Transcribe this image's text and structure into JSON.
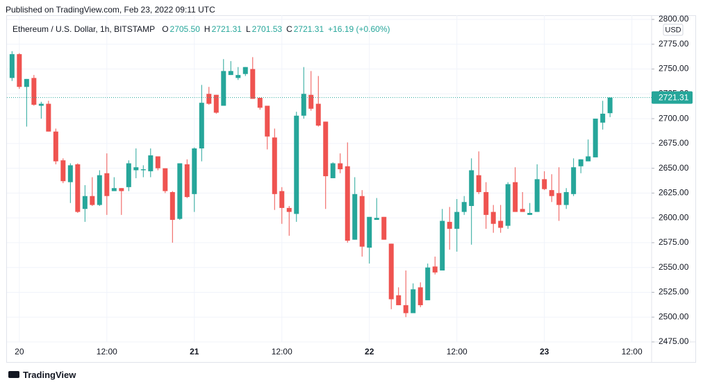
{
  "published": "Published on TradingView.com, Feb 23, 2022 09:11 UTC",
  "footer": "TradingView",
  "chart_data": {
    "type": "candlestick",
    "title": "Ethereum / U.S. Dollar, 1h, BITSTAMP",
    "ohlc_header": [
      [
        "O",
        "2705.50"
      ],
      [
        "H",
        "2721.31"
      ],
      [
        "L",
        "2701.53"
      ],
      [
        "C",
        "2721.31"
      ]
    ],
    "change": "+16.19 (+0.60%)",
    "currency": "USD",
    "up_color": "#26a69a",
    "down_color": "#ef5350",
    "grid": true,
    "last_price": {
      "value": 2721.31,
      "label": "2721.31"
    },
    "x": [
      -1,
      0,
      1,
      2,
      3,
      4,
      5,
      6,
      7,
      8,
      9,
      10,
      11,
      12,
      13,
      14,
      15,
      16,
      17,
      18,
      19,
      20,
      21,
      22,
      23,
      24,
      25,
      26,
      27,
      28,
      29,
      30,
      31,
      32,
      33,
      34,
      35,
      36,
      37,
      38,
      39,
      40,
      41,
      42,
      43,
      44,
      45,
      46,
      47,
      48,
      49,
      50,
      51,
      52,
      53,
      54,
      55,
      56,
      57,
      58,
      59,
      60,
      61,
      62,
      63,
      64,
      65,
      66,
      67,
      68,
      69,
      70,
      71,
      72,
      73,
      74,
      75,
      76,
      77,
      78,
      79,
      80,
      81
    ],
    "open": [
      2741,
      2765,
      2732,
      2741,
      2713,
      2715,
      2687,
      2658,
      2636,
      2654,
      2609,
      2622,
      2613,
      2645,
      2627,
      2630,
      2631,
      2648,
      2648,
      2647,
      2662,
      2650,
      2626,
      2599,
      2654,
      2624,
      2670,
      2725,
      2724,
      2713,
      2744,
      2741,
      2745,
      2750,
      2721,
      2713,
      2681,
      2627,
      2610,
      2604,
      2703,
      2724,
      2715,
      2697,
      2640,
      2655,
      2652,
      2578,
      2622,
      2570,
      2598,
      2601,
      2574,
      2522,
      2512,
      2504,
      2530,
      2517,
      2551,
      2547,
      2596,
      2589,
      2606,
      2612,
      2643,
      2626,
      2606,
      2597,
      2592,
      2636,
      2609,
      2603,
      2606,
      2639,
      2628,
      2625,
      2613,
      2624,
      2652,
      2657,
      2661,
      2696,
      2705.5
    ],
    "high": [
      2768,
      2766,
      2740,
      2744,
      2717,
      2718,
      2690,
      2660,
      2655,
      2655,
      2633,
      2641,
      2648,
      2665,
      2641,
      2630,
      2658,
      2670,
      2653,
      2670,
      2662,
      2650,
      2627,
      2655,
      2659,
      2671,
      2734,
      2732,
      2724,
      2760,
      2758,
      2752,
      2752,
      2762,
      2721,
      2713,
      2690,
      2631,
      2612,
      2707,
      2752,
      2748,
      2743,
      2697,
      2656,
      2665,
      2676,
      2641,
      2628,
      2600,
      2620,
      2601,
      2574,
      2530,
      2547,
      2534,
      2535,
      2554,
      2561,
      2609,
      2611,
      2619,
      2622,
      2660,
      2667,
      2636,
      2613,
      2613,
      2636,
      2651,
      2626,
      2615,
      2654,
      2647,
      2644,
      2651,
      2630,
      2660,
      2659,
      2679,
      2700,
      2718,
      2721.31
    ],
    "low": [
      2738,
      2730,
      2692,
      2713,
      2700,
      2687,
      2654,
      2635,
      2615,
      2605,
      2596,
      2612,
      2612,
      2603,
      2627,
      2603,
      2627,
      2640,
      2641,
      2641,
      2648,
      2625,
      2575,
      2598,
      2620,
      2606,
      2657,
      2714,
      2705,
      2713,
      2744,
      2739,
      2743,
      2720,
      2709,
      2669,
      2608,
      2594,
      2582,
      2596,
      2700,
      2708,
      2692,
      2609,
      2640,
      2645,
      2575,
      2578,
      2561,
      2554,
      2598,
      2578,
      2508,
      2512,
      2500,
      2504,
      2510,
      2517,
      2543,
      2547,
      2568,
      2566,
      2603,
      2573,
      2624,
      2589,
      2585,
      2585,
      2589,
      2606,
      2606,
      2603,
      2606,
      2628,
      2616,
      2597,
      2609,
      2622,
      2645,
      2657,
      2661,
      2689,
      2701.53
    ],
    "close": [
      2765,
      2732,
      2740,
      2714,
      2715,
      2687,
      2657,
      2637,
      2653,
      2606,
      2622,
      2613,
      2643,
      2622,
      2630,
      2627,
      2655,
      2651,
      2649,
      2663,
      2650,
      2627,
      2598,
      2655,
      2621,
      2670,
      2716,
      2715,
      2706,
      2748,
      2748,
      2744,
      2752,
      2720,
      2711,
      2682,
      2624,
      2610,
      2606,
      2703,
      2725,
      2710,
      2693,
      2642,
      2655,
      2649,
      2577,
      2624,
      2571,
      2601,
      2600,
      2578,
      2518,
      2512,
      2504,
      2528,
      2512,
      2550,
      2545,
      2597,
      2589,
      2606,
      2616,
      2648,
      2626,
      2603,
      2594,
      2590,
      2634,
      2606,
      2606,
      2605,
      2639,
      2629,
      2622,
      2613,
      2626,
      2651,
      2659,
      2662,
      2700,
      2705,
      2721.31
    ],
    "xlim": [
      -1.7,
      86.7
    ],
    "xticks": [
      {
        "value": 0,
        "label": "20"
      },
      {
        "value": 12,
        "label": "12:00"
      },
      {
        "value": 24,
        "label": "21"
      },
      {
        "value": 36,
        "label": "12:00"
      },
      {
        "value": 48,
        "label": "22"
      },
      {
        "value": 60,
        "label": "12:00"
      },
      {
        "value": 72,
        "label": "23"
      },
      {
        "value": 84,
        "label": "12:00"
      }
    ],
    "ylim": [
      2475,
      2804.2
    ],
    "yticks": [
      {
        "value": 2475,
        "label": "2475.00"
      },
      {
        "value": 2500,
        "label": "2500.00"
      },
      {
        "value": 2525,
        "label": "2525.00"
      },
      {
        "value": 2550,
        "label": "2550.00"
      },
      {
        "value": 2575,
        "label": "2575.00"
      },
      {
        "value": 2600,
        "label": "2600.00"
      },
      {
        "value": 2625,
        "label": "2625.00"
      },
      {
        "value": 2650,
        "label": "2650.00"
      },
      {
        "value": 2675,
        "label": "2675.00"
      },
      {
        "value": 2700,
        "label": "2700.00"
      },
      {
        "value": 2725,
        "label": "2725.00"
      },
      {
        "value": 2750,
        "label": "2750.00"
      },
      {
        "value": 2775,
        "label": "2775.00"
      },
      {
        "value": 2800,
        "label": "2800.00"
      }
    ]
  }
}
